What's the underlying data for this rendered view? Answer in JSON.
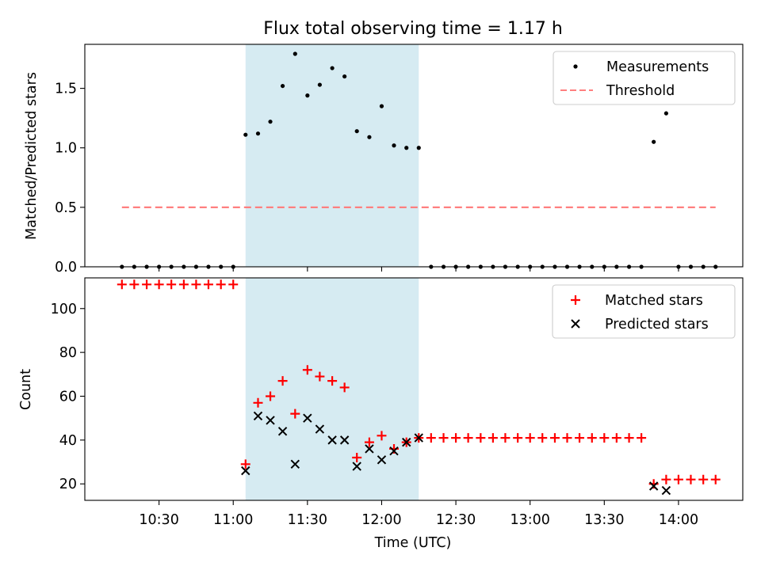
{
  "chart_data": [
    {
      "type": "scatter",
      "title": "Flux total observing time = 1.17 h",
      "ylabel": "Matched/Predicted stars",
      "xlabel": "",
      "xlim_min": [
        10.0,
        14.433
      ],
      "ylim": [
        0,
        1.87
      ],
      "yticks": [
        0.0,
        0.5,
        1.0,
        1.5
      ],
      "ytick_labels": [
        "0.0",
        "0.5",
        "1.0",
        "1.5"
      ],
      "highlight_band_hours": [
        11.083,
        12.25
      ],
      "legend_position": "top-right",
      "series": [
        {
          "name": "Measurements",
          "marker": "dot",
          "x_min": [
            10.25,
            10.333,
            10.417,
            10.5,
            10.583,
            10.667,
            10.75,
            10.833,
            10.917,
            11.0,
            11.083,
            11.167,
            11.25,
            11.333,
            11.417,
            11.5,
            11.583,
            11.667,
            11.75,
            11.833,
            11.917,
            12.0,
            12.083,
            12.167,
            12.25,
            12.333,
            12.417,
            12.5,
            12.583,
            12.667,
            12.75,
            12.833,
            12.917,
            13.0,
            13.083,
            13.167,
            13.25,
            13.333,
            13.417,
            13.5,
            13.583,
            13.667,
            13.75,
            13.833,
            13.917,
            14.0,
            14.083,
            14.167,
            14.25
          ],
          "y": [
            0,
            0,
            0,
            0,
            0,
            0,
            0,
            0,
            0,
            0,
            1.11,
            1.12,
            1.22,
            1.52,
            1.79,
            1.44,
            1.53,
            1.67,
            1.6,
            1.14,
            1.09,
            1.35,
            1.02,
            1.0,
            1.0,
            0,
            0,
            0,
            0,
            0,
            0,
            0,
            0,
            0,
            0,
            0,
            0,
            0,
            0,
            0,
            0,
            0,
            0,
            1.05,
            1.29,
            0,
            0,
            0,
            0
          ]
        },
        {
          "name": "Threshold",
          "style": "dashed",
          "color": "#ff7f7f",
          "x_min": [
            10.25,
            14.25
          ],
          "y": [
            0.5,
            0.5
          ]
        }
      ]
    },
    {
      "type": "scatter",
      "title": "",
      "ylabel": "Count",
      "xlabel": "Time (UTC)",
      "xlim_min": [
        10.0,
        14.433
      ],
      "ylim": [
        12.5,
        114
      ],
      "yticks": [
        20,
        40,
        60,
        80,
        100
      ],
      "ytick_labels": [
        "20",
        "40",
        "60",
        "80",
        "100"
      ],
      "xticks_min": [
        10.5,
        11.0,
        11.5,
        12.0,
        12.5,
        13.0,
        13.5,
        14.0
      ],
      "xtick_labels": [
        "10:30",
        "11:00",
        "11:30",
        "12:00",
        "12:30",
        "13:00",
        "13:30",
        "14:00"
      ],
      "highlight_band_hours": [
        11.083,
        12.25
      ],
      "legend_position": "top-right",
      "series": [
        {
          "name": "Matched stars",
          "marker": "plus",
          "color": "#ff0000",
          "x_min": [
            10.25,
            10.333,
            10.417,
            10.5,
            10.583,
            10.667,
            10.75,
            10.833,
            10.917,
            11.0,
            11.083,
            11.167,
            11.25,
            11.333,
            11.417,
            11.5,
            11.583,
            11.667,
            11.75,
            11.833,
            11.917,
            12.0,
            12.083,
            12.167,
            12.25,
            12.333,
            12.417,
            12.5,
            12.583,
            12.667,
            12.75,
            12.833,
            12.917,
            13.0,
            13.083,
            13.167,
            13.25,
            13.333,
            13.417,
            13.5,
            13.583,
            13.667,
            13.75,
            13.833,
            13.917,
            14.0,
            14.083,
            14.167,
            14.25
          ],
          "y": [
            111,
            111,
            111,
            111,
            111,
            111,
            111,
            111,
            111,
            111,
            29,
            57,
            60,
            67,
            52,
            72,
            69,
            67,
            64,
            32,
            39,
            42,
            36,
            39,
            41,
            41,
            41,
            41,
            41,
            41,
            41,
            41,
            41,
            41,
            41,
            41,
            41,
            41,
            41,
            41,
            41,
            41,
            41,
            20,
            22,
            22,
            22,
            22,
            22
          ]
        },
        {
          "name": "Predicted stars",
          "marker": "x",
          "color": "#000000",
          "x_min": [
            11.083,
            11.167,
            11.25,
            11.333,
            11.417,
            11.5,
            11.583,
            11.667,
            11.75,
            11.833,
            11.917,
            12.0,
            12.083,
            12.167,
            12.25,
            13.833,
            13.917
          ],
          "y": [
            26,
            51,
            49,
            44,
            29,
            50,
            45,
            40,
            40,
            28,
            36,
            31,
            35,
            39,
            41,
            19,
            17
          ]
        }
      ]
    }
  ]
}
